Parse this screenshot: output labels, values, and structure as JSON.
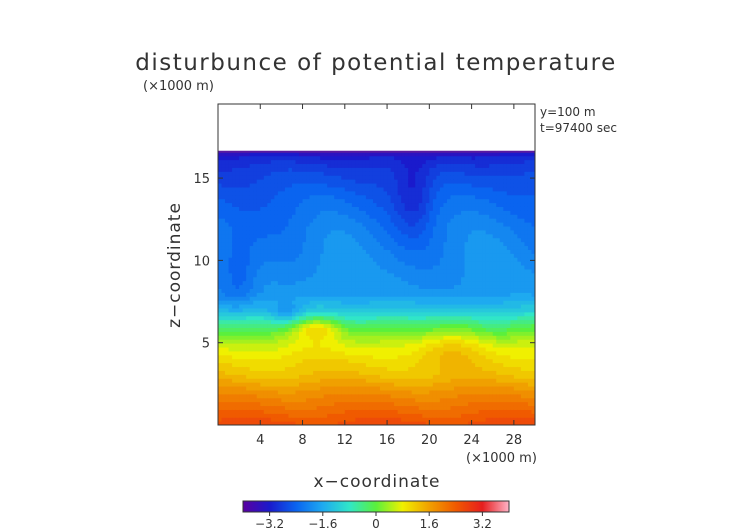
{
  "chart_data": {
    "type": "heatmap",
    "title": "disturbunce of potential temperature",
    "x_unit_label": "(×1000 m)",
    "y_unit_label": "(×1000 m)",
    "xlabel": "x−coordinate",
    "ylabel": "z−coordinate",
    "annotations": [
      "y=100 m",
      "t=97400 sec"
    ],
    "xlim": [
      0,
      30
    ],
    "ylim": [
      0,
      19.5
    ],
    "x_ticks": [
      4,
      8,
      12,
      16,
      20,
      24,
      28
    ],
    "y_ticks": [
      5,
      10,
      15
    ],
    "x_tick_labels": [
      "4",
      "8",
      "12",
      "16",
      "20",
      "24",
      "28"
    ],
    "y_tick_labels": [
      "5",
      "10",
      "15"
    ],
    "colorbar": {
      "min": -4.0,
      "max": 4.0,
      "ticks": [
        -3.2,
        -1.6,
        0,
        1.6,
        3.2
      ],
      "tick_labels": [
        "−3.2",
        "−1.6",
        "0",
        "1.6",
        "3.2"
      ],
      "colors": [
        "#5a00a0",
        "#1a1acc",
        "#0a64f0",
        "#1eaaf0",
        "#30e6c8",
        "#5af03c",
        "#f0f000",
        "#f0a000",
        "#f05a00",
        "#e61e1e",
        "#ffb4c8"
      ]
    },
    "field_top_z": 16.6,
    "field_z": [
      0,
      1,
      2,
      3,
      4,
      5,
      5.6,
      6.2,
      7,
      8,
      10,
      12,
      14,
      15.5,
      16.3,
      16.6
    ],
    "field_value": [
      2.6,
      2.2,
      1.8,
      1.3,
      1.0,
      0.6,
      0.15,
      -0.4,
      -1.3,
      -1.9,
      -2.1,
      -2.25,
      -2.5,
      -2.8,
      -3.1,
      -3.5
    ],
    "contour_interval": 0.2
  }
}
